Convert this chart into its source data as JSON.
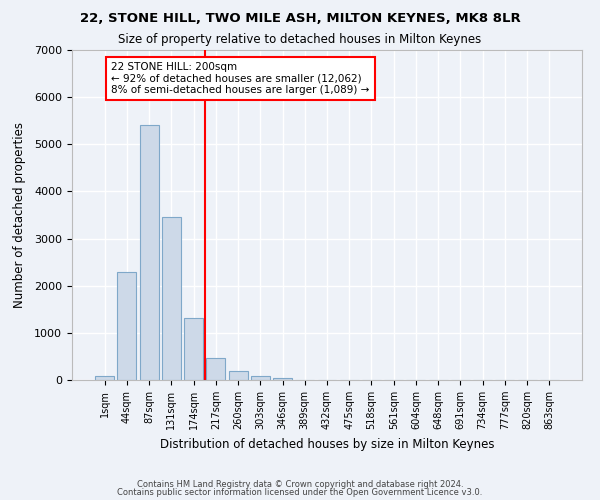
{
  "title1": "22, STONE HILL, TWO MILE ASH, MILTON KEYNES, MK8 8LR",
  "title2": "Size of property relative to detached houses in Milton Keynes",
  "xlabel": "Distribution of detached houses by size in Milton Keynes",
  "ylabel": "Number of detached properties",
  "bar_values": [
    75,
    2300,
    5400,
    3450,
    1320,
    460,
    200,
    80,
    50,
    0,
    0,
    0,
    0,
    0,
    0,
    0,
    0,
    0,
    0,
    0,
    0
  ],
  "bar_labels": [
    "1sqm",
    "44sqm",
    "87sqm",
    "131sqm",
    "174sqm",
    "217sqm",
    "260sqm",
    "303sqm",
    "346sqm",
    "389sqm",
    "432sqm",
    "475sqm",
    "518sqm",
    "561sqm",
    "604sqm",
    "648sqm",
    "691sqm",
    "734sqm",
    "777sqm",
    "820sqm",
    "863sqm"
  ],
  "bar_color": "#cdd9e8",
  "bar_edgecolor": "#7fa8c9",
  "annotation_text": "22 STONE HILL: 200sqm\n← 92% of detached houses are smaller (12,062)\n8% of semi-detached houses are larger (1,089) →",
  "annotation_box_color": "white",
  "annotation_box_edgecolor": "red",
  "redline_color": "red",
  "ylim": [
    0,
    7000
  ],
  "yticks": [
    0,
    1000,
    2000,
    3000,
    4000,
    5000,
    6000,
    7000
  ],
  "footer1": "Contains HM Land Registry data © Crown copyright and database right 2024.",
  "footer2": "Contains public sector information licensed under the Open Government Licence v3.0.",
  "bg_color": "#eef2f8",
  "grid_color": "#ffffff"
}
